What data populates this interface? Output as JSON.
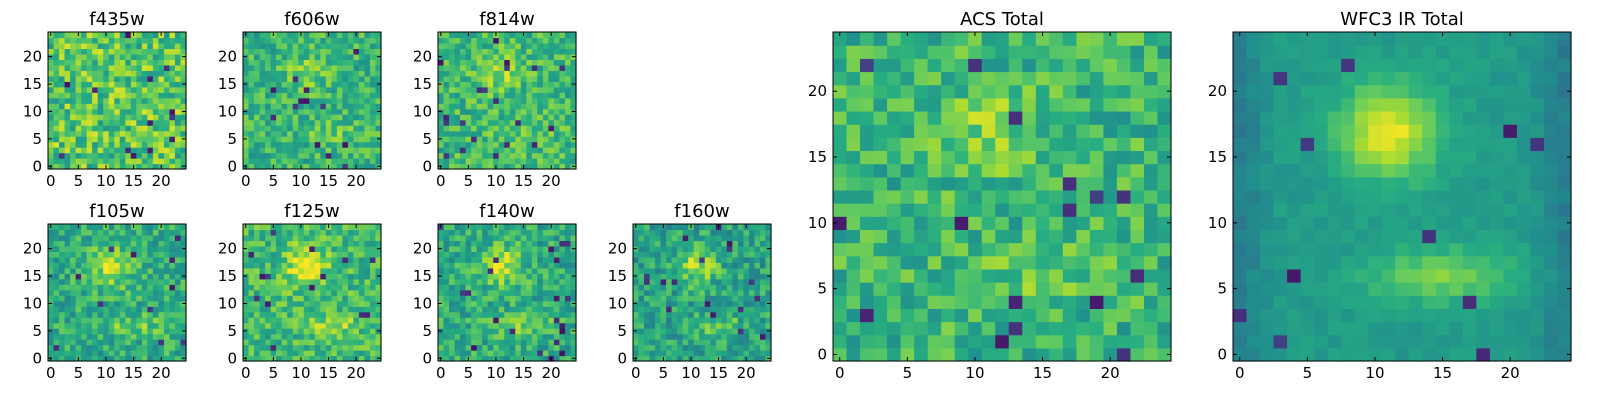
{
  "colormap": "viridis",
  "chart_data": [
    {
      "type": "heatmap",
      "title": "f435w",
      "xlim": [
        0,
        24
      ],
      "ylim": [
        0,
        24
      ],
      "xticks": [
        "0",
        "5",
        "10",
        "15",
        "20"
      ],
      "yticks": [
        "0",
        "5",
        "10",
        "15",
        "20"
      ],
      "grid": false,
      "pattern": "noise",
      "mean_level": 0.74
    },
    {
      "type": "heatmap",
      "title": "f606w",
      "xlim": [
        0,
        24
      ],
      "ylim": [
        0,
        24
      ],
      "xticks": [
        "0",
        "5",
        "10",
        "15",
        "20"
      ],
      "yticks": [
        "0",
        "5",
        "10",
        "15",
        "20"
      ],
      "grid": false,
      "pattern": "faint-source",
      "mean_level": 0.66
    },
    {
      "type": "heatmap",
      "title": "f814w",
      "xlim": [
        0,
        24
      ],
      "ylim": [
        0,
        24
      ],
      "xticks": [
        "0",
        "5",
        "10",
        "15",
        "20"
      ],
      "yticks": [
        "0",
        "5",
        "10",
        "15",
        "20"
      ],
      "grid": false,
      "pattern": "faint-source",
      "mean_level": 0.68
    },
    {
      "type": "heatmap",
      "title": "f105w",
      "xlim": [
        0,
        24
      ],
      "ylim": [
        0,
        24
      ],
      "xticks": [
        "0",
        "5",
        "10",
        "15",
        "20"
      ],
      "yticks": [
        "0",
        "5",
        "10",
        "15",
        "20"
      ],
      "grid": false,
      "pattern": "source",
      "mean_level": 0.62
    },
    {
      "type": "heatmap",
      "title": "f125w",
      "xlim": [
        0,
        24
      ],
      "ylim": [
        0,
        24
      ],
      "xticks": [
        "0",
        "5",
        "10",
        "15",
        "20"
      ],
      "yticks": [
        "0",
        "5",
        "10",
        "15",
        "20"
      ],
      "grid": false,
      "pattern": "source",
      "mean_level": 0.68
    },
    {
      "type": "heatmap",
      "title": "f140w",
      "xlim": [
        0,
        24
      ],
      "ylim": [
        0,
        24
      ],
      "xticks": [
        "0",
        "5",
        "10",
        "15",
        "20"
      ],
      "yticks": [
        "0",
        "5",
        "10",
        "15",
        "20"
      ],
      "grid": false,
      "pattern": "source",
      "mean_level": 0.62
    },
    {
      "type": "heatmap",
      "title": "f160w",
      "xlim": [
        0,
        24
      ],
      "ylim": [
        0,
        24
      ],
      "xticks": [
        "0",
        "5",
        "10",
        "15",
        "20"
      ],
      "yticks": [
        "0",
        "5",
        "10",
        "15",
        "20"
      ],
      "grid": false,
      "pattern": "source",
      "mean_level": 0.58
    },
    {
      "type": "heatmap",
      "title": "ACS Total",
      "xlim": [
        0,
        24
      ],
      "ylim": [
        0,
        24
      ],
      "xticks": [
        "0",
        "5",
        "10",
        "15",
        "20"
      ],
      "yticks": [
        "0",
        "5",
        "10",
        "15",
        "20"
      ],
      "grid": false,
      "pattern": "faint-source",
      "mean_level": 0.66
    },
    {
      "type": "heatmap",
      "title": "WFC3 IR Total",
      "xlim": [
        0,
        24
      ],
      "ylim": [
        0,
        24
      ],
      "xticks": [
        "0",
        "5",
        "10",
        "15",
        "20"
      ],
      "yticks": [
        "0",
        "5",
        "10",
        "15",
        "20"
      ],
      "grid": false,
      "pattern": "smooth-source",
      "mean_level": 0.55
    }
  ]
}
